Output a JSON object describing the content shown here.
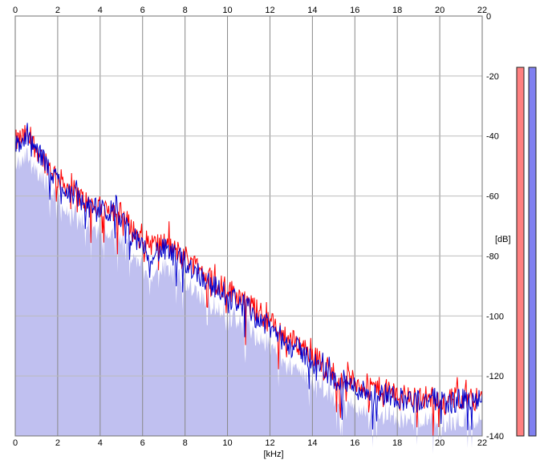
{
  "chart_data": {
    "type": "area",
    "title": "",
    "xlabel": "[kHz]",
    "ylabel": "[dB]",
    "xlim": [
      0,
      22
    ],
    "ylim": [
      -140,
      0
    ],
    "x_ticks": [
      "0",
      "2",
      "4",
      "6",
      "8",
      "10",
      "12",
      "14",
      "16",
      "18",
      "20",
      "22"
    ],
    "y_ticks": [
      "0",
      "-20",
      "-40",
      "-60",
      "-80",
      "-100",
      "-120",
      "-140"
    ],
    "grid": true,
    "x_ticks_top": true,
    "legend": "none",
    "series": [
      {
        "color": "#ff0000",
        "envelope": {
          "x": [
            0,
            0.5,
            1,
            1.5,
            2,
            2.5,
            3,
            3.5,
            4,
            4.5,
            5,
            5.5,
            6,
            6.5,
            7,
            7.5,
            8,
            8.5,
            9,
            9.5,
            10,
            10.5,
            11,
            11.5,
            12,
            12.5,
            13,
            13.5,
            14,
            14.5,
            15,
            15.5,
            16,
            16.5,
            17,
            17.5,
            18,
            18.5,
            19,
            19.5,
            20,
            20.5,
            21,
            21.5,
            22
          ],
          "values": [
            -42,
            -40,
            -44,
            -49,
            -54,
            -57,
            -60,
            -63,
            -64,
            -64,
            -66,
            -71,
            -75,
            -76,
            -76,
            -78,
            -80,
            -83,
            -86,
            -89,
            -91,
            -93,
            -96,
            -99,
            -102,
            -105,
            -108,
            -110,
            -113,
            -116,
            -119,
            -121,
            -122,
            -123,
            -124,
            -125,
            -126,
            -127,
            -127,
            -127,
            -128,
            -128,
            -127,
            -127,
            -128
          ]
        }
      },
      {
        "color": "#0000cc",
        "envelope": {
          "x": [
            0,
            0.5,
            1,
            1.5,
            2,
            2.5,
            3,
            3.5,
            4,
            4.5,
            5,
            5.5,
            6,
            6.5,
            7,
            7.5,
            8,
            8.5,
            9,
            9.5,
            10,
            10.5,
            11,
            11.5,
            12,
            12.5,
            13,
            13.5,
            14,
            14.5,
            15,
            15.5,
            16,
            16.5,
            17,
            17.5,
            18,
            18.5,
            19,
            19.5,
            20,
            20.5,
            21,
            21.5,
            22
          ],
          "values": [
            -43,
            -41,
            -45,
            -50,
            -55,
            -58,
            -61,
            -64,
            -65,
            -65,
            -68,
            -73,
            -78,
            -79,
            -78,
            -80,
            -82,
            -85,
            -88,
            -91,
            -93,
            -95,
            -98,
            -101,
            -104,
            -107,
            -110,
            -112,
            -115,
            -118,
            -121,
            -122,
            -124,
            -125,
            -126,
            -126,
            -127,
            -128,
            -128,
            -128,
            -128,
            -129,
            -128,
            -128,
            -129
          ]
        }
      }
    ],
    "fill_color": "#c0c0f0",
    "level_meters": [
      {
        "color": "#ff8080",
        "value_db": -17
      },
      {
        "color": "#8080f0",
        "value_db": -17
      }
    ]
  }
}
